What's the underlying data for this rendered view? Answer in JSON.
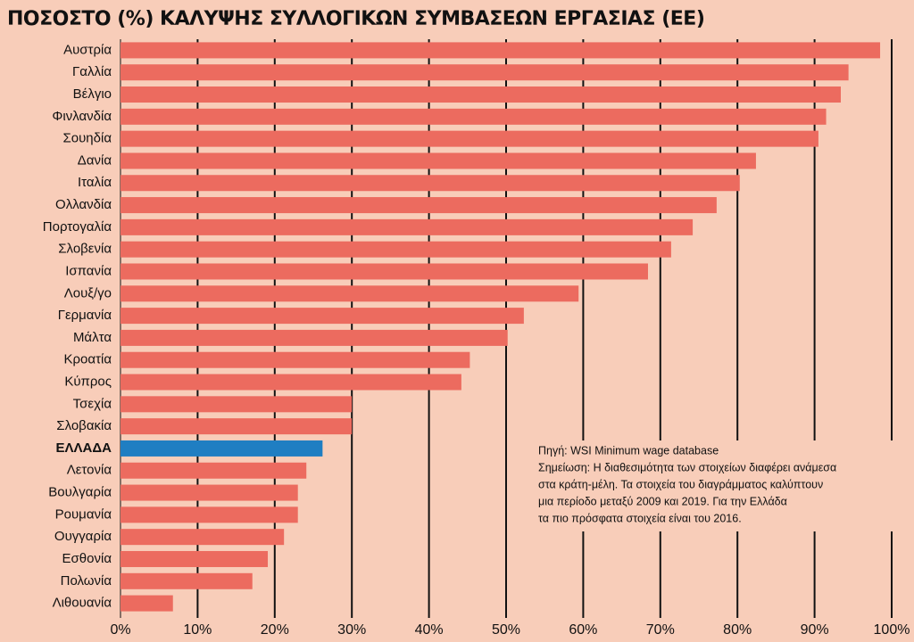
{
  "chart_data": {
    "type": "barh",
    "title": "ΠΟΣΟΣΤΟ (%) ΚΑΛΥΨΗΣ ΣΥΛΛΟΓΙΚΩΝ ΣΥΜΒΑΣΕΩΝ ΕΡΓΑΣΙΑΣ (ΕΕ)",
    "categories": [
      "Αυστρία",
      "Γαλλία",
      "Βέλγιο",
      "Φινλανδία",
      "Σουηδία",
      "Δανία",
      "Ιταλία",
      "Ολλανδία",
      "Πορτογαλία",
      "Σλοβενία",
      "Ισπανία",
      "Λουξ/γο",
      "Γερμανία",
      "Μάλτα",
      "Κροατία",
      "Κύπρος",
      "Τσεχία",
      "Σλοβακία",
      "ΕΛΛΑΔΑ",
      "Λετονία",
      "Βουλγαρία",
      "Ρουμανία",
      "Ουγγαρία",
      "Εσθονία",
      "Πολωνία",
      "Λιθουανία"
    ],
    "values": [
      98.5,
      94.4,
      93.4,
      91.5,
      90.5,
      82.4,
      80.3,
      77.3,
      74.2,
      71.4,
      68.4,
      59.4,
      52.3,
      50.2,
      45.3,
      44.2,
      30,
      30,
      26.2,
      24.1,
      23,
      23,
      21.2,
      19.1,
      17.1,
      6.8
    ],
    "color": "#ec6b5f",
    "highlight_index": 18,
    "highlight_color": "#1f7ec2",
    "xlim": [
      0,
      100
    ],
    "xticks": [
      {
        "value": 0,
        "label": "0%"
      },
      {
        "value": 10,
        "label": "10%"
      },
      {
        "value": 20,
        "label": "20%"
      },
      {
        "value": 30,
        "label": "30%"
      },
      {
        "value": 40,
        "label": "40%"
      },
      {
        "value": 50,
        "label": "50%"
      },
      {
        "value": 60,
        "label": "60%"
      },
      {
        "value": 70,
        "label": "70%"
      },
      {
        "value": 80,
        "label": "80%"
      },
      {
        "value": 90,
        "label": "90%"
      },
      {
        "value": 100,
        "label": "100%"
      }
    ],
    "grid": true,
    "note": [
      "Πηγή: WSI Minimum wage database",
      "Σημείωση: Η διαθεσιμότητα των στοιχείων διαφέρει ανάμεσα",
      "στα κράτη-μέλη. Τα στοιχεία του διαγράμματος καλύπτουν",
      "μια περίοδο μεταξύ 2009 και 2019. Για την Ελλάδα",
      "τα πιο πρόσφατα στοιχεία είναι του 2016."
    ]
  }
}
